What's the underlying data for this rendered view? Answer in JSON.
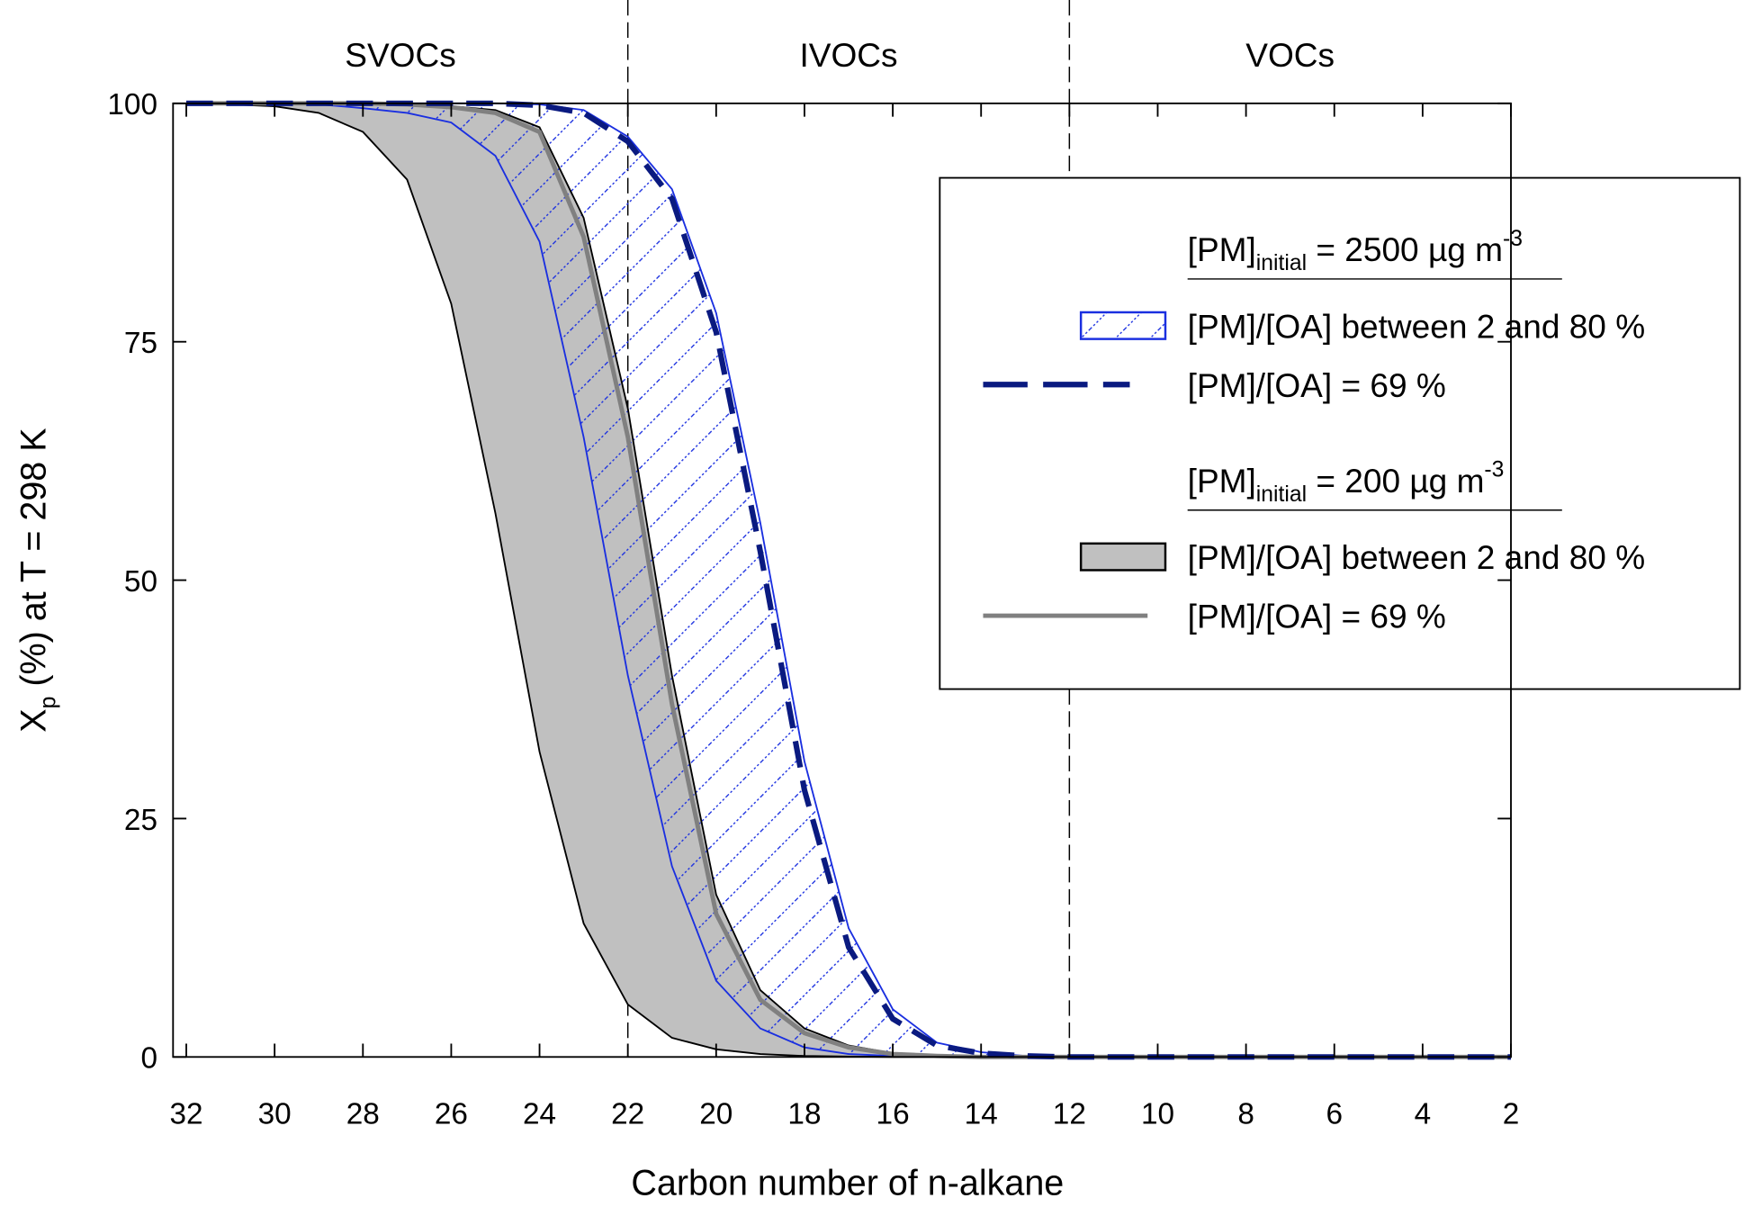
{
  "chart_data": {
    "type": "band_line",
    "x": [
      32,
      31,
      30,
      29,
      28,
      27,
      26,
      25,
      24,
      23,
      22,
      21,
      20,
      19,
      18,
      17,
      16,
      15,
      14,
      13,
      12,
      11,
      10,
      9,
      8,
      7,
      6,
      5,
      4,
      3,
      2
    ],
    "xlim": [
      32.3,
      2
    ],
    "xticks": [
      32,
      30,
      28,
      26,
      24,
      22,
      20,
      18,
      16,
      14,
      12,
      10,
      8,
      6,
      4,
      2
    ],
    "ylim": [
      0,
      100
    ],
    "yticks": [
      0,
      25,
      50,
      75,
      100
    ],
    "x_label": "Carbon number of n-alkane",
    "y_label": {
      "base": "X",
      "sub": "p",
      "text": " (%) at T = 298 K"
    },
    "regions": [
      "SVOCs",
      "IVOCs",
      "VOCs"
    ],
    "region_boundaries": [
      22,
      12
    ],
    "groups": [
      {
        "heading": {
          "base": "[PM]",
          "sub": "initial",
          "text": " = 2500 µg m",
          "sup": "-3"
        },
        "band": {
          "name": "[PM]/[OA] between 2 and 80 %",
          "color": "#1a2fe0",
          "fill": "hatch",
          "lower": [
            100,
            100,
            100,
            99.9,
            99.5,
            99,
            98,
            94.5,
            85.5,
            65,
            40,
            20,
            8,
            3,
            1,
            0.3,
            0.1,
            0,
            0,
            0,
            0,
            0,
            0,
            0,
            0,
            0,
            0,
            0,
            0,
            0,
            0
          ],
          "upper": [
            100,
            100,
            100,
            100,
            100,
            100,
            100,
            100,
            99.9,
            99.3,
            96.5,
            91,
            78,
            56,
            31,
            13.5,
            5,
            1.5,
            0.5,
            0.1,
            0,
            0,
            0,
            0,
            0,
            0,
            0,
            0,
            0,
            0,
            0
          ]
        },
        "line": {
          "name": "[PM]/[OA] = 69 %",
          "color": "#0a1a80",
          "dashed": true,
          "values": [
            100,
            100,
            100,
            100,
            100,
            100,
            100,
            100,
            99.8,
            99,
            96,
            90,
            76,
            53,
            28,
            11.5,
            4,
            1.2,
            0.4,
            0.1,
            0,
            0,
            0,
            0,
            0,
            0,
            0,
            0,
            0,
            0,
            0
          ]
        }
      },
      {
        "heading": {
          "base": "[PM]",
          "sub": "initial",
          "text": " = 200 µg m",
          "sup": "-3"
        },
        "band": {
          "name": "[PM]/[OA] between 2 and 80 %",
          "color": "#000000",
          "fill": "#c0c0c0",
          "lower": [
            100,
            99.9,
            99.7,
            99,
            97,
            92,
            79,
            57,
            32,
            14,
            5.5,
            2,
            0.8,
            0.3,
            0.1,
            0.05,
            0,
            0,
            0,
            0,
            0,
            0,
            0,
            0,
            0,
            0,
            0,
            0,
            0,
            0,
            0
          ],
          "upper": [
            100,
            100,
            100,
            100,
            100,
            99.9,
            99.7,
            99.3,
            97.5,
            88,
            68,
            40,
            17,
            7,
            3,
            1.2,
            0.4,
            0.1,
            0,
            0,
            0,
            0,
            0,
            0,
            0,
            0,
            0,
            0,
            0,
            0,
            0
          ]
        },
        "line": {
          "name": "[PM]/[OA] = 69 %",
          "color": "#808080",
          "dashed": false,
          "values": [
            100,
            100,
            100,
            100,
            100,
            99.9,
            99.6,
            99,
            97,
            86,
            65,
            37,
            15,
            6,
            2.5,
            1,
            0.3,
            0.1,
            0,
            0,
            0,
            0,
            0,
            0,
            0,
            0,
            0,
            0,
            0,
            0,
            0
          ]
        }
      }
    ]
  }
}
